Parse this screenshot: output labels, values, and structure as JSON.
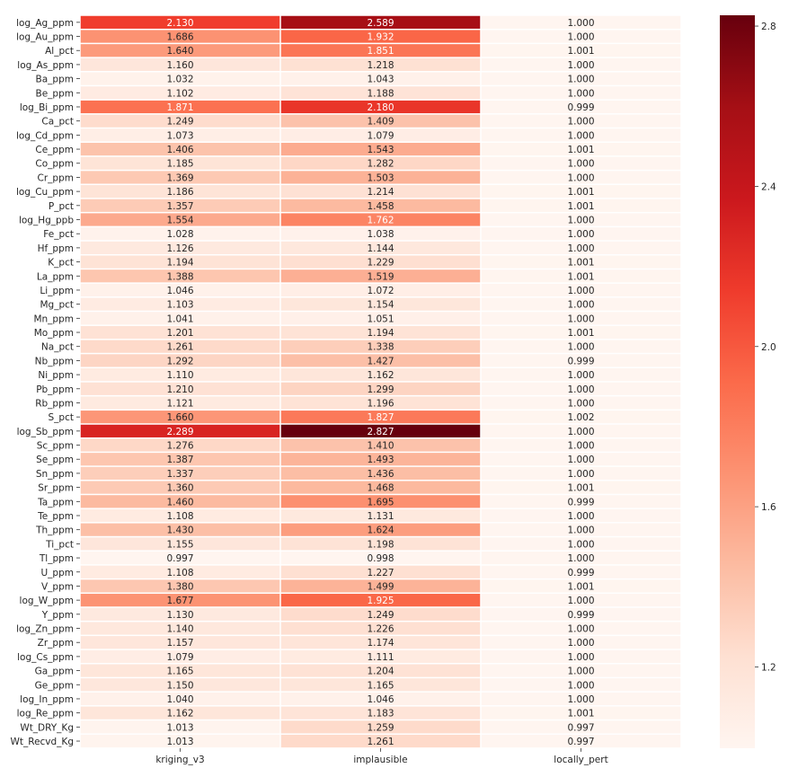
{
  "chart_data": {
    "type": "heatmap",
    "columns": [
      "kriging_v3",
      "implausible",
      "locally_pert"
    ],
    "rows": [
      "log_Ag_ppm",
      "log_Au_ppm",
      "Al_pct",
      "log_As_ppm",
      "Ba_ppm",
      "Be_ppm",
      "log_Bi_ppm",
      "Ca_pct",
      "log_Cd_ppm",
      "Ce_ppm",
      "Co_ppm",
      "Cr_ppm",
      "log_Cu_ppm",
      "P_pct",
      "log_Hg_ppb",
      "Fe_pct",
      "Hf_ppm",
      "K_pct",
      "La_ppm",
      "Li_ppm",
      "Mg_pct",
      "Mn_ppm",
      "Mo_ppm",
      "Na_pct",
      "Nb_ppm",
      "Ni_ppm",
      "Pb_ppm",
      "Rb_ppm",
      "S_pct",
      "log_Sb_ppm",
      "Sc_ppm",
      "Se_ppm",
      "Sn_ppm",
      "Sr_ppm",
      "Ta_ppm",
      "Te_ppm",
      "Th_ppm",
      "Ti_pct",
      "Tl_ppm",
      "U_ppm",
      "V_ppm",
      "log_W_ppm",
      "Y_ppm",
      "log_Zn_ppm",
      "Zr_ppm",
      "log_Cs_ppm",
      "Ga_ppm",
      "Ge_ppm",
      "log_In_ppm",
      "log_Re_ppm",
      "Wt_DRY_Kg",
      "Wt_Recvd_Kg"
    ],
    "values": [
      [
        "2.130",
        "2.589",
        "1.000"
      ],
      [
        "1.686",
        "1.932",
        "1.000"
      ],
      [
        "1.640",
        "1.851",
        "1.001"
      ],
      [
        "1.160",
        "1.218",
        "1.000"
      ],
      [
        "1.032",
        "1.043",
        "1.000"
      ],
      [
        "1.102",
        "1.188",
        "1.000"
      ],
      [
        "1.871",
        "2.180",
        "0.999"
      ],
      [
        "1.249",
        "1.409",
        "1.000"
      ],
      [
        "1.073",
        "1.079",
        "1.000"
      ],
      [
        "1.406",
        "1.543",
        "1.001"
      ],
      [
        "1.185",
        "1.282",
        "1.000"
      ],
      [
        "1.369",
        "1.503",
        "1.000"
      ],
      [
        "1.186",
        "1.214",
        "1.001"
      ],
      [
        "1.357",
        "1.458",
        "1.001"
      ],
      [
        "1.554",
        "1.762",
        "1.000"
      ],
      [
        "1.028",
        "1.038",
        "1.000"
      ],
      [
        "1.126",
        "1.144",
        "1.000"
      ],
      [
        "1.194",
        "1.229",
        "1.001"
      ],
      [
        "1.388",
        "1.519",
        "1.001"
      ],
      [
        "1.046",
        "1.072",
        "1.000"
      ],
      [
        "1.103",
        "1.154",
        "1.000"
      ],
      [
        "1.041",
        "1.051",
        "1.000"
      ],
      [
        "1.201",
        "1.194",
        "1.001"
      ],
      [
        "1.261",
        "1.338",
        "1.000"
      ],
      [
        "1.292",
        "1.427",
        "0.999"
      ],
      [
        "1.110",
        "1.162",
        "1.000"
      ],
      [
        "1.210",
        "1.299",
        "1.000"
      ],
      [
        "1.121",
        "1.196",
        "1.000"
      ],
      [
        "1.660",
        "1.827",
        "1.002"
      ],
      [
        "2.289",
        "2.827",
        "1.000"
      ],
      [
        "1.276",
        "1.410",
        "1.000"
      ],
      [
        "1.387",
        "1.493",
        "1.000"
      ],
      [
        "1.337",
        "1.436",
        "1.000"
      ],
      [
        "1.360",
        "1.468",
        "1.001"
      ],
      [
        "1.460",
        "1.695",
        "0.999"
      ],
      [
        "1.108",
        "1.131",
        "1.000"
      ],
      [
        "1.430",
        "1.624",
        "1.000"
      ],
      [
        "1.155",
        "1.198",
        "1.000"
      ],
      [
        "0.997",
        "0.998",
        "1.000"
      ],
      [
        "1.108",
        "1.227",
        "0.999"
      ],
      [
        "1.380",
        "1.499",
        "1.001"
      ],
      [
        "1.677",
        "1.925",
        "1.000"
      ],
      [
        "1.130",
        "1.249",
        "0.999"
      ],
      [
        "1.140",
        "1.226",
        "1.000"
      ],
      [
        "1.157",
        "1.174",
        "1.000"
      ],
      [
        "1.079",
        "1.111",
        "1.000"
      ],
      [
        "1.165",
        "1.204",
        "1.000"
      ],
      [
        "1.150",
        "1.165",
        "1.000"
      ],
      [
        "1.040",
        "1.046",
        "1.000"
      ],
      [
        "1.162",
        "1.183",
        "1.001"
      ],
      [
        "1.013",
        "1.259",
        "0.997"
      ],
      [
        "1.013",
        "1.261",
        "0.997"
      ]
    ],
    "color_scale": {
      "name": "Reds",
      "vmin": 0.997,
      "vmax": 2.827
    },
    "colorbar_ticks": [
      "1.2",
      "1.6",
      "2.0",
      "2.4",
      "2.8"
    ],
    "colorbar_tick_values": [
      1.2,
      1.6,
      2.0,
      2.4,
      2.8
    ],
    "grid": "white cell separators",
    "legend": "colorbar right"
  }
}
